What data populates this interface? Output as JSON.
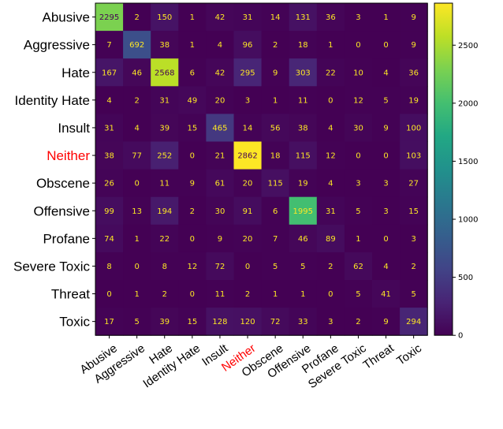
{
  "chart_data": {
    "type": "heatmap",
    "title": "",
    "xlabel": "",
    "ylabel": "",
    "highlight_label": "Neither",
    "highlight_color": "#ff0000",
    "colormap": "viridis",
    "labels": [
      "Abusive",
      "Aggressive",
      "Hate",
      "Identity Hate",
      "Insult",
      "Neither",
      "Obscene",
      "Offensive",
      "Profane",
      "Severe Toxic",
      "Threat",
      "Toxic"
    ],
    "matrix": [
      [
        2295,
        2,
        150,
        1,
        42,
        31,
        14,
        131,
        36,
        3,
        1,
        9
      ],
      [
        7,
        692,
        38,
        1,
        4,
        96,
        2,
        18,
        1,
        0,
        0,
        9
      ],
      [
        167,
        46,
        2568,
        6,
        42,
        295,
        9,
        303,
        22,
        10,
        4,
        36
      ],
      [
        4,
        2,
        31,
        49,
        20,
        3,
        1,
        11,
        0,
        12,
        5,
        19
      ],
      [
        31,
        4,
        39,
        15,
        465,
        14,
        56,
        38,
        4,
        30,
        9,
        100
      ],
      [
        38,
        77,
        252,
        0,
        21,
        2862,
        18,
        115,
        12,
        0,
        0,
        103
      ],
      [
        26,
        0,
        11,
        9,
        61,
        20,
        115,
        19,
        4,
        3,
        3,
        27
      ],
      [
        99,
        13,
        194,
        2,
        30,
        91,
        6,
        1995,
        31,
        5,
        3,
        15
      ],
      [
        74,
        1,
        22,
        0,
        9,
        20,
        7,
        46,
        89,
        1,
        0,
        3
      ],
      [
        8,
        0,
        8,
        12,
        72,
        0,
        5,
        5,
        2,
        62,
        4,
        2
      ],
      [
        0,
        1,
        2,
        0,
        11,
        2,
        1,
        1,
        0,
        5,
        41,
        5
      ],
      [
        17,
        5,
        39,
        15,
        128,
        120,
        72,
        33,
        3,
        2,
        9,
        294
      ]
    ],
    "colorbar": {
      "range": [
        0,
        2862
      ],
      "ticks": [
        0,
        500,
        1000,
        1500,
        2000,
        2500
      ]
    }
  }
}
